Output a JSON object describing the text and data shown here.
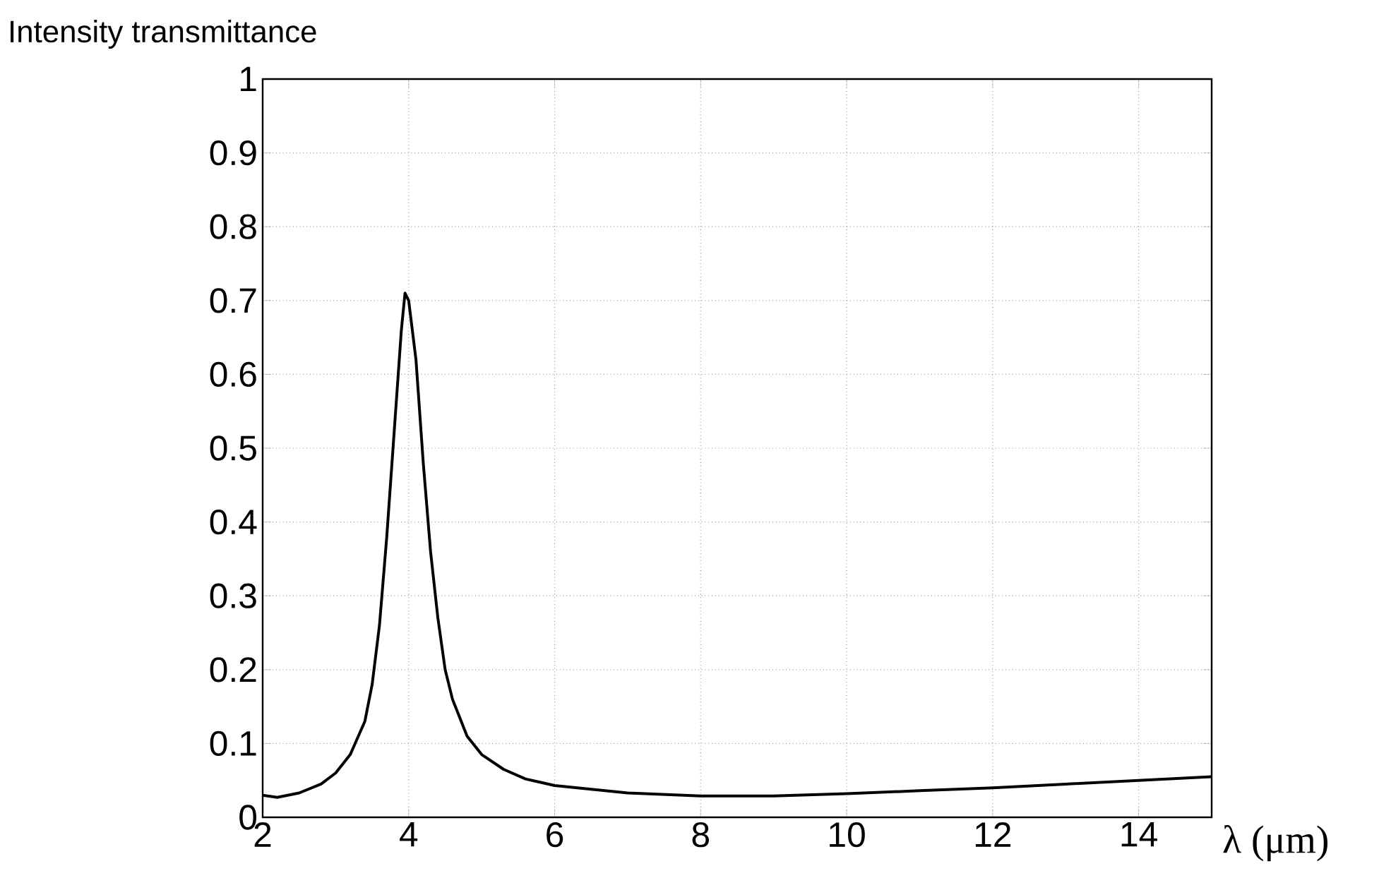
{
  "chart_data": {
    "type": "line",
    "xlabel": "λ (μm)",
    "ylabel": "Intensity transmittance",
    "xlim": [
      2,
      15
    ],
    "ylim": [
      0,
      1
    ],
    "xticks": [
      2,
      4,
      6,
      8,
      10,
      12,
      14
    ],
    "yticks": [
      0,
      0.1,
      0.2,
      0.3,
      0.4,
      0.5,
      0.6,
      0.7,
      0.8,
      0.9,
      1
    ],
    "grid": true,
    "series": [
      {
        "color": "#000000",
        "x": [
          2,
          2.2,
          2.5,
          2.8,
          3.0,
          3.2,
          3.4,
          3.5,
          3.6,
          3.7,
          3.8,
          3.9,
          3.95,
          4.0,
          4.1,
          4.2,
          4.3,
          4.4,
          4.5,
          4.6,
          4.8,
          5.0,
          5.3,
          5.6,
          6,
          7,
          8,
          9,
          10,
          11,
          12,
          13,
          14,
          15
        ],
        "values": [
          0.03,
          0.027,
          0.033,
          0.045,
          0.06,
          0.085,
          0.13,
          0.18,
          0.26,
          0.38,
          0.52,
          0.66,
          0.71,
          0.7,
          0.62,
          0.48,
          0.36,
          0.27,
          0.2,
          0.16,
          0.11,
          0.085,
          0.065,
          0.052,
          0.043,
          0.033,
          0.029,
          0.029,
          0.032,
          0.036,
          0.04,
          0.045,
          0.05,
          0.055
        ]
      }
    ]
  }
}
